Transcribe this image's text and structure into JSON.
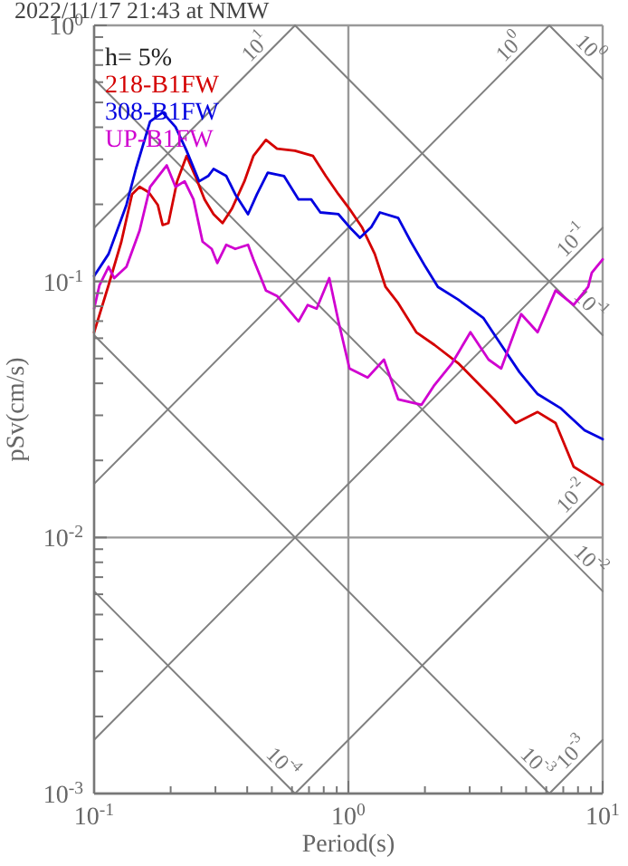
{
  "chart_data": {
    "type": "line",
    "title": "2022/11/17 21:43 at NMW",
    "xlabel": "Period(s)",
    "ylabel": "pSv(cm/s)",
    "legend_title": "h= 5%",
    "legend": "top left",
    "log": "xy",
    "grid": true,
    "xlim": [
      0.1,
      10
    ],
    "ylim": [
      0.001,
      1
    ],
    "xticks": [
      {
        "value": 0.1,
        "label": "10$^{-1}$"
      },
      {
        "value": 0.2,
        "label": null
      },
      {
        "value": 0.3,
        "label": null
      },
      {
        "value": 0.4,
        "label": null
      },
      {
        "value": 0.5,
        "label": null
      },
      {
        "value": 0.6,
        "label": null
      },
      {
        "value": 0.7,
        "label": null
      },
      {
        "value": 0.8,
        "label": null
      },
      {
        "value": 0.9,
        "label": null
      },
      {
        "value": 1,
        "label": "10$^{0}$"
      },
      {
        "value": 2,
        "label": null
      },
      {
        "value": 3,
        "label": null
      },
      {
        "value": 4,
        "label": null
      },
      {
        "value": 5,
        "label": null
      },
      {
        "value": 6,
        "label": null
      },
      {
        "value": 7,
        "label": null
      },
      {
        "value": 8,
        "label": null
      },
      {
        "value": 9,
        "label": null
      },
      {
        "value": 10,
        "label": "10$^{1}$"
      }
    ],
    "yticks": [
      {
        "value": 0.001,
        "label": "10$^{-3}$"
      },
      {
        "value": 0.002,
        "label": null
      },
      {
        "value": 0.003,
        "label": null
      },
      {
        "value": 0.004,
        "label": null
      },
      {
        "value": 0.005,
        "label": null
      },
      {
        "value": 0.006,
        "label": null
      },
      {
        "value": 0.007,
        "label": null
      },
      {
        "value": 0.008,
        "label": null
      },
      {
        "value": 0.009,
        "label": null
      },
      {
        "value": 0.01,
        "label": "10$^{-2}$"
      },
      {
        "value": 0.02,
        "label": null
      },
      {
        "value": 0.03,
        "label": null
      },
      {
        "value": 0.04,
        "label": null
      },
      {
        "value": 0.05,
        "label": null
      },
      {
        "value": 0.06,
        "label": null
      },
      {
        "value": 0.07,
        "label": null
      },
      {
        "value": 0.08,
        "label": null
      },
      {
        "value": 0.09,
        "label": null
      },
      {
        "value": 0.1,
        "label": "10$^{-1}$"
      },
      {
        "value": 0.2,
        "label": null
      },
      {
        "value": 0.3,
        "label": null
      },
      {
        "value": 0.4,
        "label": null
      },
      {
        "value": 0.5,
        "label": null
      },
      {
        "value": 0.6,
        "label": null
      },
      {
        "value": 0.7,
        "label": null
      },
      {
        "value": 0.8,
        "label": null
      },
      {
        "value": 0.9,
        "label": null
      },
      {
        "value": 1,
        "label": "10$^{0}$"
      }
    ],
    "series": [
      {
        "name": "218-B1FW",
        "color": "#d40000",
        "x": [
          0.1,
          0.114,
          0.128,
          0.141,
          0.151,
          0.164,
          0.178,
          0.186,
          0.196,
          0.212,
          0.231,
          0.25,
          0.272,
          0.295,
          0.32,
          0.348,
          0.39,
          0.423,
          0.474,
          0.524,
          0.616,
          0.726,
          0.815,
          0.914,
          1.01,
          1.13,
          1.27,
          1.4,
          1.57,
          1.85,
          2.18,
          2.7,
          3.18,
          3.74,
          4.55,
          5.55,
          6.53,
          7.69,
          10
        ],
        "values": [
          0.0633,
          0.0967,
          0.143,
          0.219,
          0.234,
          0.223,
          0.199,
          0.166,
          0.169,
          0.246,
          0.309,
          0.258,
          0.209,
          0.183,
          0.169,
          0.192,
          0.246,
          0.309,
          0.357,
          0.33,
          0.324,
          0.309,
          0.258,
          0.219,
          0.192,
          0.163,
          0.128,
          0.0952,
          0.0822,
          0.0633,
          0.0565,
          0.048,
          0.0407,
          0.0346,
          0.028,
          0.0309,
          0.028,
          0.0189,
          0.0161
        ]
      },
      {
        "name": "308-B1FW",
        "color": "#0000e0",
        "x": [
          0.1,
          0.114,
          0.134,
          0.146,
          0.166,
          0.186,
          0.209,
          0.231,
          0.259,
          0.281,
          0.295,
          0.331,
          0.359,
          0.403,
          0.437,
          0.482,
          0.558,
          0.637,
          0.714,
          0.776,
          0.914,
          1.01,
          1.11,
          1.23,
          1.33,
          1.57,
          1.76,
          2.01,
          2.25,
          2.7,
          3.39,
          3.99,
          4.71,
          5.55,
          6.86,
          8.49,
          10
        ],
        "values": [
          0.105,
          0.128,
          0.199,
          0.275,
          0.421,
          0.457,
          0.401,
          0.324,
          0.246,
          0.258,
          0.275,
          0.258,
          0.219,
          0.183,
          0.219,
          0.266,
          0.258,
          0.209,
          0.209,
          0.186,
          0.183,
          0.163,
          0.148,
          0.163,
          0.186,
          0.177,
          0.143,
          0.114,
          0.0952,
          0.085,
          0.0721,
          0.0565,
          0.0442,
          0.0363,
          0.0319,
          0.0262,
          0.0242
        ]
      },
      {
        "name": "UP-B1FW",
        "color": "#d000d0",
        "x": [
          0.1,
          0.105,
          0.114,
          0.12,
          0.134,
          0.151,
          0.166,
          0.193,
          0.209,
          0.227,
          0.246,
          0.267,
          0.29,
          0.305,
          0.331,
          0.359,
          0.403,
          0.423,
          0.459,
          0.474,
          0.524,
          0.637,
          0.692,
          0.75,
          0.841,
          0.914,
          1.01,
          1.19,
          1.38,
          1.57,
          1.94,
          2.18,
          2.56,
          3.02,
          3.56,
          3.99,
          4.78,
          5.55,
          6.53,
          7.69,
          8.77,
          9.06,
          10
        ],
        "values": [
          0.0783,
          0.0967,
          0.114,
          0.103,
          0.114,
          0.158,
          0.234,
          0.284,
          0.234,
          0.246,
          0.209,
          0.143,
          0.134,
          0.118,
          0.139,
          0.134,
          0.139,
          0.122,
          0.1,
          0.0922,
          0.0878,
          0.0698,
          0.0809,
          0.0783,
          0.103,
          0.0698,
          0.0457,
          0.0421,
          0.0495,
          0.0346,
          0.033,
          0.0394,
          0.048,
          0.0633,
          0.0495,
          0.0457,
          0.0745,
          0.0633,
          0.0922,
          0.0809,
          0.0952,
          0.108,
          0.122
        ]
      },
      {
        "name": "10$^{1}$",
        "color": "#808080",
        "x": [
          0.1,
          0.617
        ],
        "values": [
          0.162,
          1
        ]
      },
      {
        "name": "10$^{0}$",
        "color": "#808080",
        "x": [
          0.1,
          6.17
        ],
        "values": [
          0.0162,
          1
        ]
      },
      {
        "name": "10$^{-1}$",
        "color": "#808080",
        "x": [
          0.1,
          10
        ],
        "values": [
          0.00162,
          0.162
        ]
      },
      {
        "name": "10$^{-2}$",
        "color": "#808080",
        "x": [
          0.617,
          10
        ],
        "values": [
          0.001,
          0.0162
        ]
      },
      {
        "name": "10$^{-3}$",
        "color": "#808080",
        "x": [
          6.17,
          10
        ],
        "values": [
          0.001,
          0.00162
        ]
      },
      {
        "name": "10$^{0}$",
        "color": "#808080",
        "x": [
          6.17,
          10
        ],
        "values": [
          1,
          0.617
        ]
      },
      {
        "name": "10$^{-1}$",
        "color": "#808080",
        "x": [
          0.617,
          10
        ],
        "values": [
          1,
          0.0617
        ]
      },
      {
        "name": "10$^{-2}$",
        "color": "#808080",
        "x": [
          0.1,
          10
        ],
        "values": [
          0.617,
          0.00617
        ]
      },
      {
        "name": "10$^{-3}$",
        "color": "#808080",
        "x": [
          0.1,
          6.17
        ],
        "values": [
          0.0617,
          0.001
        ]
      },
      {
        "name": "10$^{-4}$",
        "color": "#808080",
        "x": [
          0.1,
          0.617
        ],
        "values": [
          0.00617,
          0.001
        ]
      }
    ]
  }
}
